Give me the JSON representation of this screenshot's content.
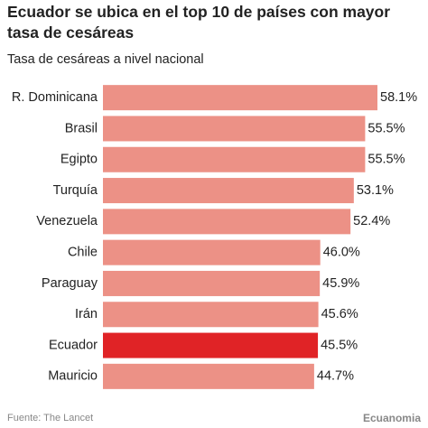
{
  "chart_data": {
    "type": "hbar",
    "title": "Ecuador se ubica en el top 10 de países con mayor tasa de cesáreas",
    "subtitle": "Tasa de cesáreas a nivel nacional",
    "categories": [
      "R. Dominicana",
      "Brasil",
      "Egipto",
      "Turquía",
      "Venezuela",
      "Chile",
      "Paraguay",
      "Irán",
      "Ecuador",
      "Mauricio"
    ],
    "values": [
      58.1,
      55.5,
      55.5,
      53.1,
      52.4,
      46.0,
      45.9,
      45.6,
      45.5,
      44.7
    ],
    "value_labels": [
      "58.1%",
      "55.5%",
      "55.5%",
      "53.1%",
      "52.4%",
      "46.0%",
      "45.9%",
      "45.6%",
      "45.5%",
      "44.7%"
    ],
    "colors": [
      "#ec9186",
      "#ec9186",
      "#ec9186",
      "#ec9186",
      "#ec9186",
      "#ec9186",
      "#ec9186",
      "#ec9186",
      "#e02326",
      "#ec9186"
    ],
    "source": "Fuente: The Lancet",
    "brand": "Ecuanomia"
  }
}
